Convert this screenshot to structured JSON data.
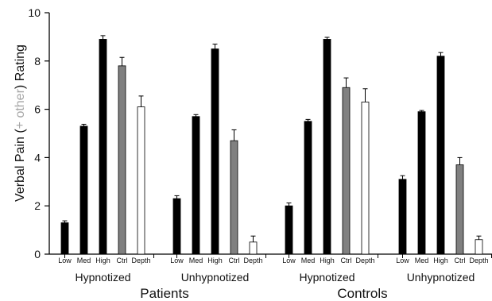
{
  "chart_data": {
    "type": "bar",
    "ylabel_parts": [
      "Verbal Pain (",
      "+ other",
      ") Rating"
    ],
    "ylim": [
      0,
      10
    ],
    "yticks": [
      "0",
      "2",
      "4",
      "6",
      "8",
      "10"
    ],
    "grid": false,
    "categories": [
      "Low",
      "Med",
      "High",
      "Ctrl",
      "Depth"
    ],
    "colors": {
      "Low": "#000000",
      "Med": "#000000",
      "High": "#000000",
      "Ctrl": "#808080",
      "Depth": "#ffffff",
      "other_text": "#a6a6a6"
    },
    "groups": [
      {
        "label": "Patients",
        "conditions": [
          {
            "label": "Hypnotized",
            "values": [
              1.3,
              5.3,
              8.9,
              7.8,
              6.1
            ],
            "errors": [
              0.08,
              0.08,
              0.15,
              0.35,
              0.45
            ]
          },
          {
            "label": "Unhypnotized",
            "values": [
              2.3,
              5.7,
              8.5,
              4.7,
              0.5
            ],
            "errors": [
              0.12,
              0.08,
              0.2,
              0.45,
              0.25
            ]
          }
        ]
      },
      {
        "label": "Controls",
        "conditions": [
          {
            "label": "Hypnotized",
            "values": [
              2.0,
              5.5,
              8.9,
              6.9,
              6.3
            ],
            "errors": [
              0.12,
              0.08,
              0.08,
              0.4,
              0.55
            ]
          },
          {
            "label": "Unhypnotized",
            "values": [
              3.1,
              5.9,
              8.2,
              3.7,
              0.6
            ],
            "errors": [
              0.15,
              0.05,
              0.15,
              0.3,
              0.15
            ]
          }
        ]
      }
    ]
  }
}
